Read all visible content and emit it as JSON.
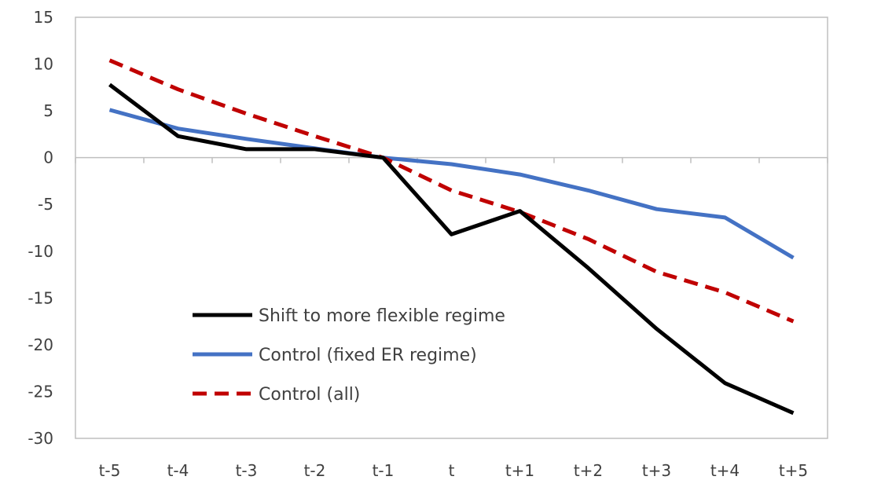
{
  "chart_data": {
    "type": "line",
    "title": "",
    "xlabel": "",
    "ylabel": "",
    "categories": [
      "t-5",
      "t-4",
      "t-3",
      "t-2",
      "t-1",
      "t",
      "t+1",
      "t+2",
      "t+3",
      "t+4",
      "t+5"
    ],
    "ylim": [
      -30,
      15
    ],
    "yticks": [
      15,
      10,
      5,
      0,
      -5,
      -10,
      -15,
      -20,
      -25,
      -30
    ],
    "ytick_labels": [
      "15",
      "10",
      "5",
      "0",
      "-5",
      "-10",
      "-15",
      "-20",
      "-25",
      "-30"
    ],
    "grid": false,
    "legend_position": "bottom-left inside",
    "series": [
      {
        "name": "Shift to more flexible regime",
        "color": "#000000",
        "style": "solid",
        "values": [
          7.8,
          2.3,
          0.9,
          0.9,
          0.0,
          -8.2,
          -5.7,
          -11.8,
          -18.3,
          -24.1,
          -27.3
        ]
      },
      {
        "name": "Control (fixed ER regime)",
        "color": "#4472C4",
        "style": "solid",
        "values": [
          5.1,
          3.1,
          2.0,
          1.0,
          0.0,
          -0.7,
          -1.8,
          -3.5,
          -5.5,
          -6.4,
          -10.7
        ]
      },
      {
        "name": "Control (all)",
        "color": "#C00000",
        "style": "dashed",
        "values": [
          10.4,
          7.3,
          4.7,
          2.3,
          0.0,
          -3.5,
          -5.8,
          -8.7,
          -12.2,
          -14.4,
          -17.5
        ]
      }
    ]
  }
}
